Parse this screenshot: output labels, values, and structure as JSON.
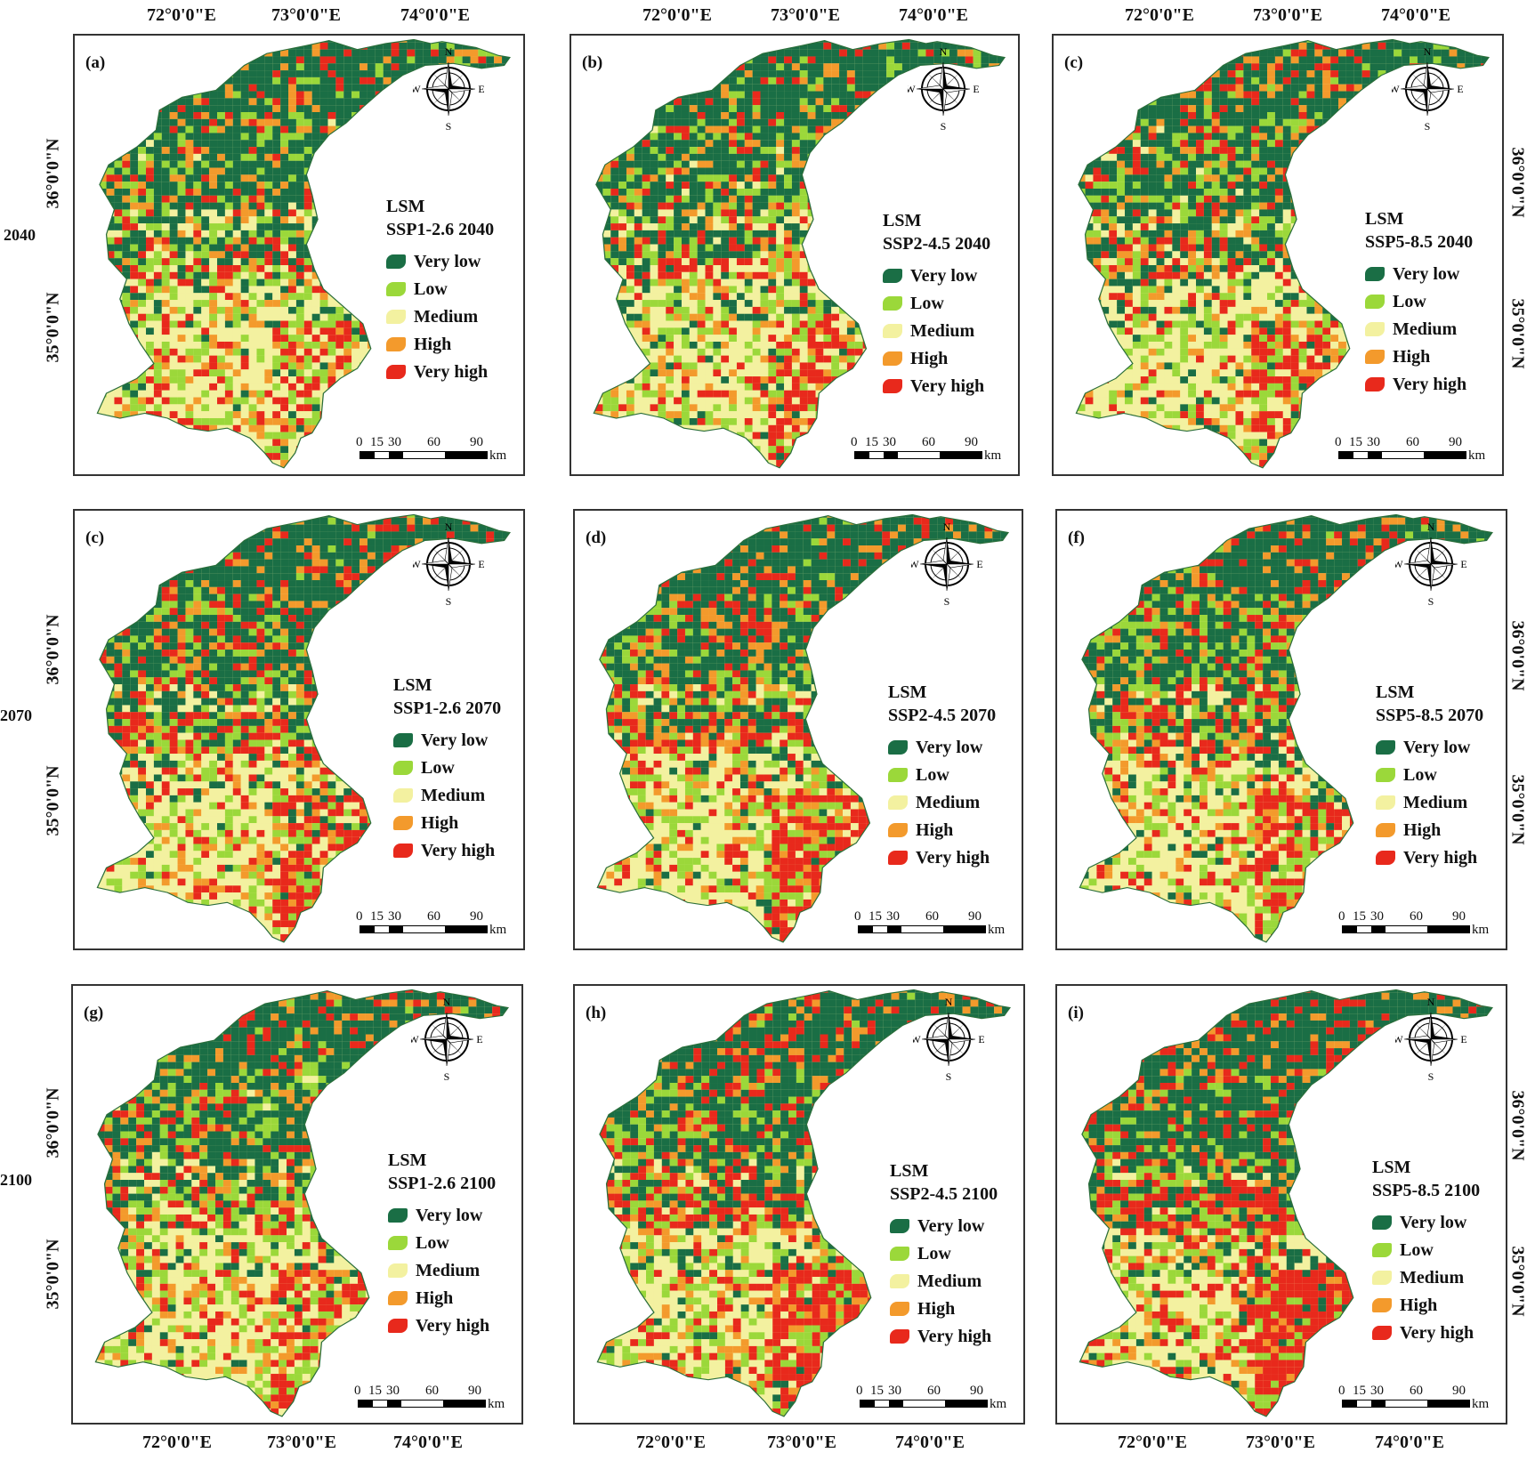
{
  "figure": {
    "top_longitudes": [
      {
        "label": "72°0'0\"E"
      },
      {
        "label": "73°0'0\"E"
      },
      {
        "label": "74°0'0\"E"
      }
    ],
    "bottom_longitudes": [
      {
        "label": "72°0'0\"E"
      },
      {
        "label": "73°0'0\"E"
      },
      {
        "label": "74°0'0\"E"
      }
    ],
    "latitudes": [
      {
        "label": "36°0'0\"N"
      },
      {
        "label": "35°0'0\"N"
      }
    ],
    "row_years": [
      "2040",
      "2070",
      "2100"
    ],
    "legend_title": "LSM",
    "legend_items": [
      {
        "label": "Very low",
        "color": "#1a6e45"
      },
      {
        "label": "Low",
        "color": "#9bd83a"
      },
      {
        "label": "Medium",
        "color": "#f3f1a0"
      },
      {
        "label": "High",
        "color": "#f39a2c"
      },
      {
        "label": "Very high",
        "color": "#e8291c"
      }
    ],
    "compass": {
      "n": "N",
      "s": "S",
      "e": "E",
      "w": "W"
    },
    "scale": {
      "ticks": [
        "0",
        "15",
        "30",
        "60",
        "90"
      ],
      "unit": "km"
    },
    "panels": [
      {
        "label": "(a)",
        "scenario": "SSP1-2.6 2040",
        "severity": 0.3
      },
      {
        "label": "(b)",
        "scenario": "SSP2-4.5 2040",
        "severity": 0.32
      },
      {
        "label": "(c)",
        "scenario": "SSP5-8.5 2040",
        "severity": 0.31
      },
      {
        "label": "(c)",
        "scenario": "SSP1-2.6 2070",
        "severity": 0.4
      },
      {
        "label": "(d)",
        "scenario": "SSP2-4.5 2070",
        "severity": 0.42
      },
      {
        "label": "(f)",
        "scenario": "SSP5-8.5 2070",
        "severity": 0.38
      },
      {
        "label": "(g)",
        "scenario": "SSP1-2.6 2100",
        "severity": 0.33
      },
      {
        "label": "(h)",
        "scenario": "SSP2-4.5 2100",
        "severity": 0.45
      },
      {
        "label": "(i)",
        "scenario": "SSP5-8.5 2100",
        "severity": 0.55
      }
    ]
  }
}
